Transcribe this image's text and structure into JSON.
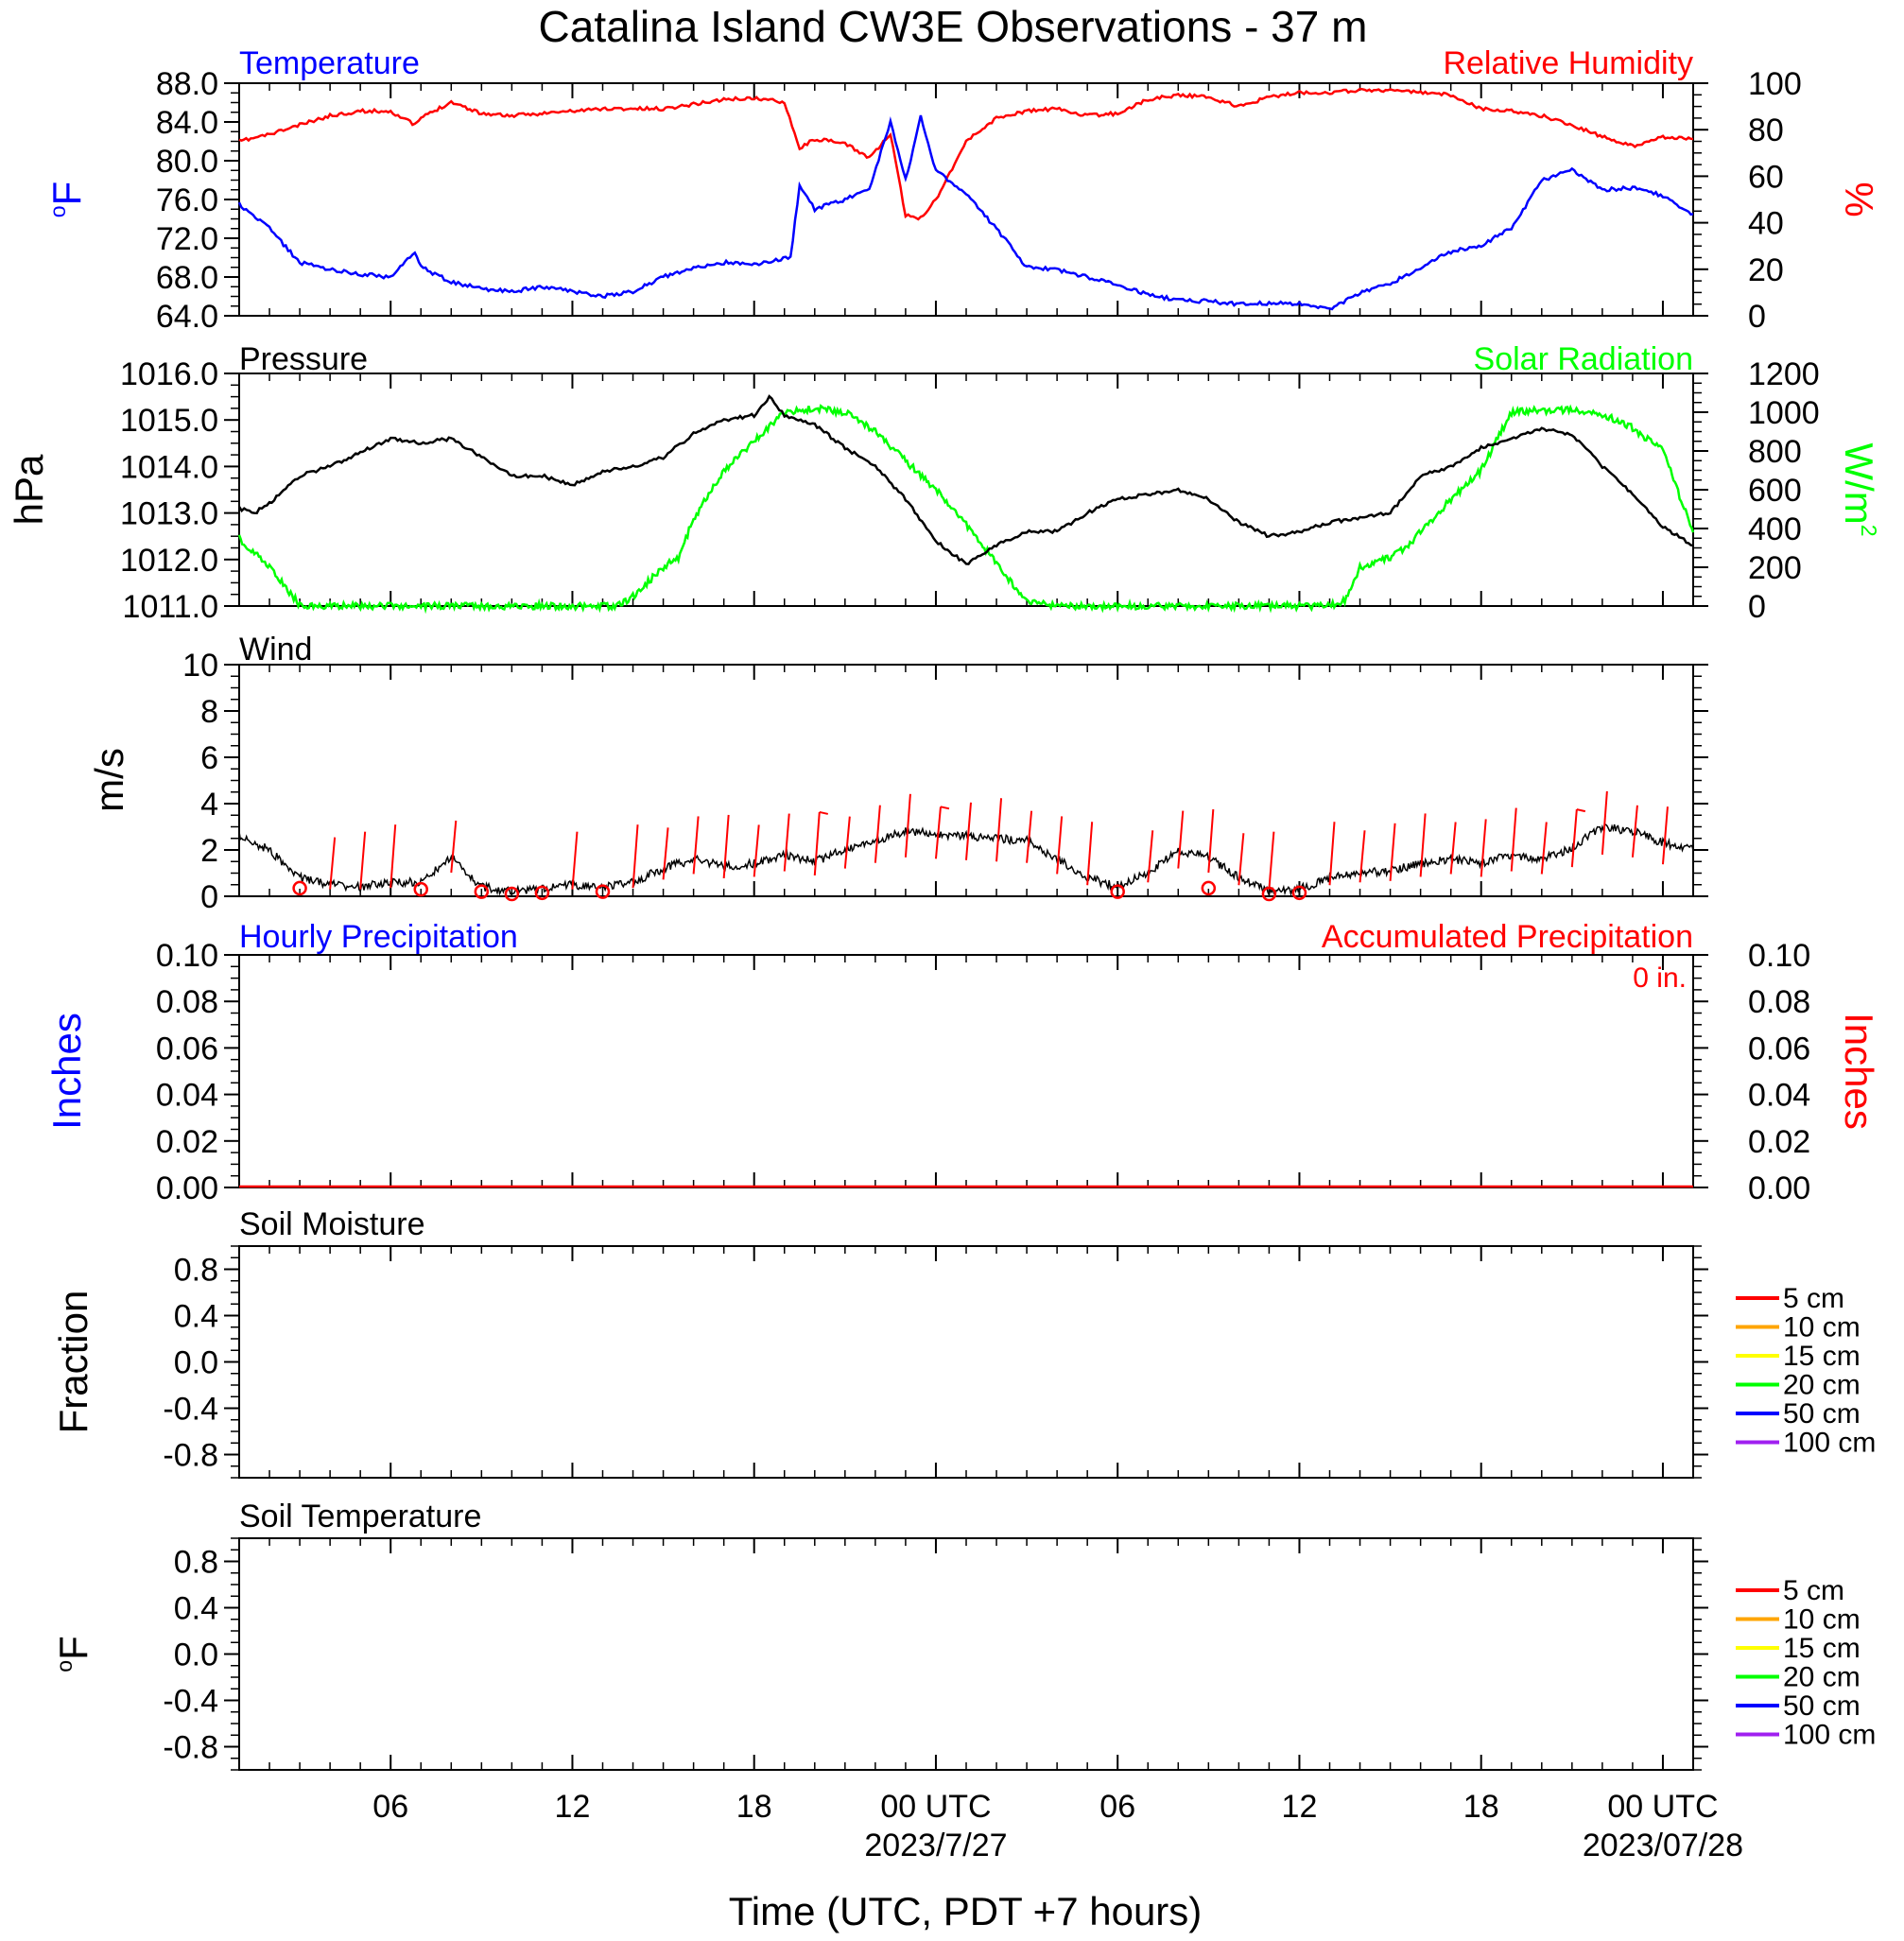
{
  "title": "Catalina Island CW3E Observations - 37 m",
  "x_axis": {
    "label": "Time (UTC, PDT +7 hours)",
    "start": "2023-07-26T01:00Z",
    "end": "2023-07-28T01:00Z",
    "tick_labels": [
      "06",
      "12",
      "18",
      "00 UTC",
      "06",
      "12",
      "18",
      "00 UTC"
    ],
    "tick_times": [
      "2023-07-26T06:00Z",
      "2023-07-26T12:00Z",
      "2023-07-26T18:00Z",
      "2023-07-27T00:00Z",
      "2023-07-27T06:00Z",
      "2023-07-27T12:00Z",
      "2023-07-27T18:00Z",
      "2023-07-28T00:00Z"
    ],
    "date_labels": [
      "2023/7/27",
      "2023/07/28"
    ]
  },
  "colors": {
    "temperature": "#0000ff",
    "humidity": "#ff0000",
    "pressure": "#000000",
    "solar": "#00ff00",
    "wind": "#000000",
    "wind_barb": "#ff0000",
    "precip_hourly": "#0000ff",
    "precip_accum": "#ff0000"
  },
  "panels": {
    "temperature": {
      "left_label": "Temperature",
      "right_label": "Relative Humidity",
      "left_unit": "oF",
      "right_unit": "%",
      "left_ticks": [
        "88.0",
        "84.0",
        "80.0",
        "76.0",
        "72.0",
        "68.0",
        "64.0"
      ],
      "right_ticks": [
        "100",
        "80",
        "60",
        "40",
        "20",
        "0"
      ]
    },
    "pressure": {
      "left_label": "Pressure",
      "right_label": "Solar Radiation",
      "left_unit": "hPa",
      "right_unit": "W/m2",
      "left_ticks": [
        "1016.0",
        "1015.0",
        "1014.0",
        "1013.0",
        "1012.0",
        "1011.0"
      ],
      "right_ticks": [
        "1200",
        "1000",
        "800",
        "600",
        "400",
        "200",
        "0"
      ]
    },
    "wind": {
      "left_label": "Wind",
      "left_unit": "m/s",
      "left_ticks": [
        "10",
        "8",
        "6",
        "4",
        "2",
        "0"
      ]
    },
    "precip": {
      "left_label": "Hourly Precipitation",
      "right_label": "Accumulated Precipitation",
      "accum_text": "0 in.",
      "left_unit": "Inches",
      "right_unit": "Inches",
      "left_ticks": [
        "0.10",
        "0.08",
        "0.06",
        "0.04",
        "0.02",
        "0.00"
      ],
      "right_ticks": [
        "0.10",
        "0.08",
        "0.06",
        "0.04",
        "0.02",
        "0.00"
      ]
    },
    "soil_moisture": {
      "left_label": "Soil Moisture",
      "left_unit": "Fraction",
      "left_ticks": [
        "0.8",
        "0.4",
        "0.0",
        "-0.4",
        "-0.8"
      ],
      "legend": [
        "5 cm",
        "10 cm",
        "15 cm",
        "20 cm",
        "50 cm",
        "100 cm"
      ]
    },
    "soil_temperature": {
      "left_label": "Soil Temperature",
      "left_unit": "oF",
      "left_ticks": [
        "0.8",
        "0.4",
        "0.0",
        "-0.4",
        "-0.8"
      ],
      "legend": [
        "5 cm",
        "10 cm",
        "15 cm",
        "20 cm",
        "50 cm",
        "100 cm"
      ]
    }
  },
  "legend_colors": [
    "#ff0000",
    "#ffa500",
    "#ffff00",
    "#00ff00",
    "#0000ff",
    "#a020f0"
  ],
  "chart_data": [
    {
      "type": "line",
      "title": "Temperature",
      "x_unit": "hours since 2023-07-26 00:00 UTC",
      "series": [
        {
          "name": "Temperature",
          "axis": "left",
          "unit": "°F",
          "x": [
            1,
            2,
            3,
            4,
            5,
            6,
            6.8,
            7,
            8,
            9,
            10,
            11,
            12,
            13,
            14,
            15,
            16,
            17,
            18,
            19.2,
            19.5,
            20,
            21,
            21.8,
            22.5,
            23,
            23.5,
            24,
            25,
            26,
            27,
            28,
            29,
            30,
            31,
            32,
            33,
            34,
            35,
            36,
            37,
            38,
            39,
            40,
            41,
            42,
            43,
            44,
            45,
            46,
            47,
            48,
            49
          ],
          "y": [
            75.5,
            73,
            69.5,
            68.8,
            68.3,
            68,
            70.5,
            69,
            67.5,
            66.8,
            66.5,
            67,
            66.5,
            66,
            66.5,
            68,
            69,
            69.5,
            69.3,
            70,
            77.5,
            75,
            76,
            77,
            84,
            78,
            84.5,
            79,
            76.5,
            73,
            69,
            68.8,
            68,
            67.2,
            66.2,
            65.6,
            65.5,
            65.2,
            65.3,
            65.2,
            64.6,
            66.4,
            67.3,
            69,
            70.6,
            71.3,
            73,
            78,
            79,
            77,
            77.2,
            76.4,
            74.5
          ]
        },
        {
          "name": "Relative Humidity",
          "axis": "right",
          "unit": "%",
          "x": [
            1,
            2,
            3,
            4,
            5,
            6,
            6.8,
            7,
            8,
            9,
            10,
            11,
            12,
            13,
            14,
            15,
            16,
            17,
            18,
            19,
            19.5,
            20,
            21,
            21.8,
            22.5,
            23,
            23.5,
            24,
            25,
            26,
            27,
            28,
            29,
            30,
            31,
            32,
            33,
            34,
            35,
            36,
            37,
            38,
            39,
            40,
            41,
            42,
            43,
            44,
            45,
            46,
            47,
            48,
            49
          ],
          "y": [
            75,
            78,
            82,
            86,
            88,
            88,
            82,
            85,
            92,
            87,
            86,
            87,
            88,
            89,
            89,
            89,
            91,
            93,
            93.5,
            92,
            72,
            76,
            74,
            68,
            78,
            43,
            42,
            50,
            75,
            85,
            88,
            89,
            86,
            87,
            93,
            95,
            94,
            90,
            94,
            96,
            96,
            97,
            97,
            96,
            95,
            89,
            88,
            86,
            82,
            77,
            73,
            77,
            76
          ]
        }
      ],
      "ylim_left": [
        64,
        88
      ],
      "ylim_right": [
        0,
        100
      ]
    },
    {
      "type": "line",
      "title": "Pressure",
      "x_unit": "hours since 2023-07-26 00:00 UTC",
      "series": [
        {
          "name": "Pressure",
          "axis": "left",
          "unit": "hPa",
          "x": [
            1,
            1.5,
            2,
            3,
            4,
            5,
            6,
            7,
            8,
            9,
            10,
            11,
            12,
            13,
            14,
            15,
            16,
            17,
            18,
            18.5,
            19,
            20,
            21,
            22,
            23,
            24,
            25,
            26,
            27,
            28,
            29,
            30,
            31,
            32,
            33,
            34,
            35,
            36,
            37,
            38,
            39,
            40,
            41,
            42,
            43,
            44,
            45,
            46,
            47,
            48,
            49
          ],
          "y": [
            1013.1,
            1013.0,
            1013.2,
            1013.8,
            1014.0,
            1014.3,
            1014.6,
            1014.5,
            1014.6,
            1014.2,
            1013.8,
            1013.8,
            1013.6,
            1013.9,
            1014.0,
            1014.2,
            1014.7,
            1015.0,
            1015.1,
            1015.5,
            1015.1,
            1014.9,
            1014.4,
            1014.0,
            1013.3,
            1012.4,
            1011.9,
            1012.3,
            1012.6,
            1012.6,
            1013.0,
            1013.3,
            1013.4,
            1013.5,
            1013.3,
            1012.8,
            1012.5,
            1012.6,
            1012.8,
            1012.9,
            1013.0,
            1013.8,
            1014.0,
            1014.4,
            1014.6,
            1014.8,
            1014.7,
            1014.0,
            1013.4,
            1012.7,
            1012.3
          ]
        },
        {
          "name": "Solar Radiation",
          "axis": "right",
          "unit": "W/m2",
          "x": [
            1,
            2,
            3,
            4,
            13,
            13.5,
            14,
            15,
            15.5,
            16,
            17,
            18,
            19,
            20,
            21,
            22,
            23,
            24,
            25,
            26,
            27,
            28,
            37,
            37.5,
            38,
            39,
            39.5,
            40,
            41,
            42,
            43,
            44,
            45,
            46,
            47,
            48,
            49
          ],
          "y": [
            350,
            200,
            5,
            0,
            0,
            0,
            50,
            200,
            250,
            450,
            700,
            850,
            1000,
            1020,
            1000,
            900,
            750,
            600,
            420,
            220,
            20,
            0,
            0,
            30,
            200,
            250,
            300,
            380,
            550,
            700,
            1000,
            1010,
            1010,
            990,
            920,
            800,
            380
          ]
        }
      ],
      "ylim_left": [
        1011,
        1016
      ],
      "ylim_right": [
        0,
        1200
      ]
    },
    {
      "type": "line",
      "title": "Wind",
      "x_unit": "hours since 2023-07-26 00:00 UTC",
      "series": [
        {
          "name": "Wind",
          "unit": "m/s",
          "x": [
            1,
            2,
            3,
            4,
            5,
            6,
            7,
            8,
            9,
            10,
            11,
            12,
            13,
            14,
            15,
            16,
            17,
            18,
            19,
            20,
            21,
            22,
            23,
            24,
            25,
            26,
            27,
            28,
            29,
            30,
            31,
            32,
            33,
            34,
            35,
            36,
            37,
            38,
            39,
            40,
            41,
            42,
            43,
            44,
            45,
            46,
            47,
            48,
            49
          ],
          "y": [
            2.6,
            2.0,
            0.8,
            0.5,
            0.4,
            0.6,
            0.6,
            1.7,
            0.4,
            0.2,
            0.3,
            0.5,
            0.4,
            0.6,
            1.2,
            1.6,
            1.3,
            1.4,
            1.8,
            1.5,
            2.0,
            2.4,
            2.8,
            2.7,
            2.6,
            2.5,
            2.4,
            1.6,
            0.8,
            0.4,
            1.0,
            2.0,
            1.7,
            0.8,
            0.2,
            0.3,
            0.8,
            1.0,
            1.1,
            1.4,
            1.6,
            1.4,
            1.8,
            1.6,
            2.1,
            3.0,
            2.8,
            2.3,
            2.0
          ]
        }
      ],
      "barbs_x": [
        4,
        5,
        6,
        8,
        12,
        14,
        15,
        16,
        17,
        18,
        19,
        20,
        21,
        22,
        23,
        24,
        25,
        26,
        27,
        28,
        29,
        31,
        32,
        33,
        34,
        35,
        37,
        38,
        39,
        40,
        41,
        42,
        43,
        44,
        45,
        46,
        47,
        48
      ],
      "calm_x": [
        3,
        7,
        9,
        10,
        11,
        13,
        30,
        33,
        35,
        36
      ],
      "ylim": [
        0,
        10
      ]
    },
    {
      "type": "line",
      "title": "Hourly Precipitation",
      "x_unit": "hours since 2023-07-26 00:00 UTC",
      "series": [
        {
          "name": "Hourly Precipitation",
          "axis": "left",
          "unit": "in",
          "x": [
            1,
            49
          ],
          "y": [
            0,
            0
          ]
        },
        {
          "name": "Accumulated Precipitation",
          "axis": "right",
          "unit": "in",
          "x": [
            1,
            49
          ],
          "y": [
            0,
            0
          ]
        }
      ],
      "ylim_left": [
        0,
        0.1
      ],
      "ylim_right": [
        0,
        0.1
      ]
    },
    {
      "type": "line",
      "title": "Soil Moisture",
      "series": [],
      "legend": [
        "5 cm",
        "10 cm",
        "15 cm",
        "20 cm",
        "50 cm",
        "100 cm"
      ],
      "ylim": [
        -1,
        1
      ]
    },
    {
      "type": "line",
      "title": "Soil Temperature",
      "series": [],
      "legend": [
        "5 cm",
        "10 cm",
        "15 cm",
        "20 cm",
        "50 cm",
        "100 cm"
      ],
      "ylim": [
        -1,
        1
      ]
    }
  ]
}
